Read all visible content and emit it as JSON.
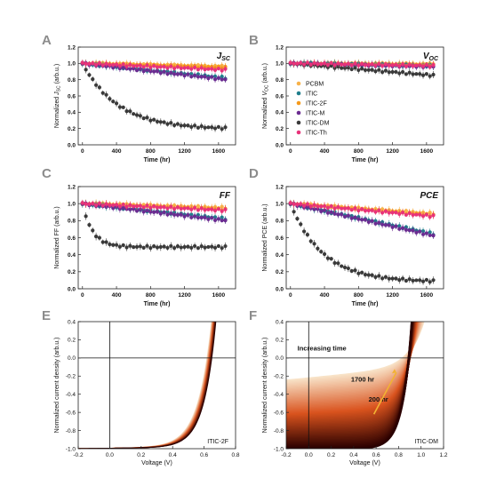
{
  "legend": [
    "PCBM",
    "ITIC",
    "ITIC-2F",
    "ITIC-M",
    "ITIC-DM",
    "ITIC-Th"
  ],
  "colors": {
    "PCBM": "#f7b24a",
    "ITIC": "#1f7e8c",
    "ITIC-2F": "#f59a1b",
    "ITIC-M": "#6b2c91",
    "ITIC-DM": "#3a3a3a",
    "ITIC-Th": "#e8337a"
  },
  "chart_data": [
    {
      "panel": "A",
      "type": "scatter",
      "title": "J_SC",
      "xlabel": "Time (hr)",
      "ylabel": "Normalized J_SC (arb.u.)",
      "xlim": [
        -50,
        1800
      ],
      "ylim": [
        0,
        1.2
      ],
      "xticks": [
        0,
        400,
        800,
        1200,
        1600
      ],
      "yticks": [
        0.0,
        0.2,
        0.4,
        0.6,
        0.8,
        1.0,
        1.2
      ],
      "series": [
        {
          "name": "PCBM",
          "end": 0.96
        },
        {
          "name": "ITIC",
          "end": 0.82
        },
        {
          "name": "ITIC-2F",
          "end": 0.95
        },
        {
          "name": "ITIC-M",
          "end": 0.8
        },
        {
          "name": "ITIC-DM",
          "end": 0.19
        },
        {
          "name": "ITIC-Th",
          "end": 0.92
        }
      ]
    },
    {
      "panel": "B",
      "type": "scatter",
      "title": "V_OC",
      "xlabel": "Time (hr)",
      "ylabel": "Normalized V_OC (arb.u.)",
      "xlim": [
        -50,
        1800
      ],
      "ylim": [
        0,
        1.2
      ],
      "xticks": [
        0,
        400,
        800,
        1200,
        1600
      ],
      "yticks": [
        0.0,
        0.2,
        0.4,
        0.6,
        0.8,
        1.0,
        1.2
      ],
      "series": [
        {
          "name": "PCBM",
          "end": 0.99
        },
        {
          "name": "ITIC",
          "end": 0.97
        },
        {
          "name": "ITIC-2F",
          "end": 0.98
        },
        {
          "name": "ITIC-M",
          "end": 0.96
        },
        {
          "name": "ITIC-DM",
          "end": 0.85
        },
        {
          "name": "ITIC-Th",
          "end": 0.97
        }
      ]
    },
    {
      "panel": "C",
      "type": "scatter",
      "title": "FF",
      "xlabel": "Time (hr)",
      "ylabel": "Normalized FF (arb.u.)",
      "xlim": [
        -50,
        1800
      ],
      "ylim": [
        0,
        1.2
      ],
      "xticks": [
        0,
        400,
        800,
        1200,
        1600
      ],
      "yticks": [
        0.0,
        0.2,
        0.4,
        0.6,
        0.8,
        1.0,
        1.2
      ],
      "series": [
        {
          "name": "PCBM",
          "end": 0.95
        },
        {
          "name": "ITIC",
          "end": 0.82
        },
        {
          "name": "ITIC-2F",
          "end": 0.93
        },
        {
          "name": "ITIC-M",
          "end": 0.8
        },
        {
          "name": "ITIC-DM",
          "end": 0.49
        },
        {
          "name": "ITIC-Th",
          "end": 0.92
        }
      ]
    },
    {
      "panel": "D",
      "type": "scatter",
      "title": "PCE",
      "xlabel": "Time (hr)",
      "ylabel": "Normalized PCE (arb.u.)",
      "xlim": [
        -50,
        1800
      ],
      "ylim": [
        0,
        1.2
      ],
      "xticks": [
        0,
        400,
        800,
        1200,
        1600
      ],
      "yticks": [
        0.0,
        0.2,
        0.4,
        0.6,
        0.8,
        1.0,
        1.2
      ],
      "series": [
        {
          "name": "PCBM",
          "end": 0.88
        },
        {
          "name": "ITIC",
          "end": 0.64
        },
        {
          "name": "ITIC-2F",
          "end": 0.86
        },
        {
          "name": "ITIC-M",
          "end": 0.62
        },
        {
          "name": "ITIC-DM",
          "end": 0.08
        },
        {
          "name": "ITIC-Th",
          "end": 0.85
        }
      ]
    },
    {
      "panel": "E",
      "type": "line",
      "xlabel": "Voltage (V)",
      "ylabel": "Normalized current density (arb.u.)",
      "xlim": [
        -0.2,
        0.8
      ],
      "ylim": [
        -1.0,
        0.4
      ],
      "xticks": [
        -0.2,
        0.0,
        0.2,
        0.4,
        0.6,
        0.8
      ],
      "yticks": [
        -1.0,
        -0.8,
        -0.6,
        -0.4,
        -0.2,
        0.0,
        0.2,
        0.4
      ],
      "label": "ITIC-2F"
    },
    {
      "panel": "F",
      "type": "line",
      "xlabel": "Voltage (V)",
      "ylabel": "Normalized current density (arb.u.)",
      "xlim": [
        -0.2,
        1.2
      ],
      "ylim": [
        -1.0,
        0.4
      ],
      "xticks": [
        -0.2,
        0.0,
        0.2,
        0.4,
        0.6,
        0.8,
        1.0,
        1.2
      ],
      "yticks": [
        -1.0,
        -0.8,
        -0.6,
        -0.4,
        -0.2,
        0.0,
        0.2,
        0.4
      ],
      "label": "ITIC-DM",
      "annotations": [
        "Increasing time",
        "1700 hr",
        "200 hr"
      ]
    }
  ]
}
